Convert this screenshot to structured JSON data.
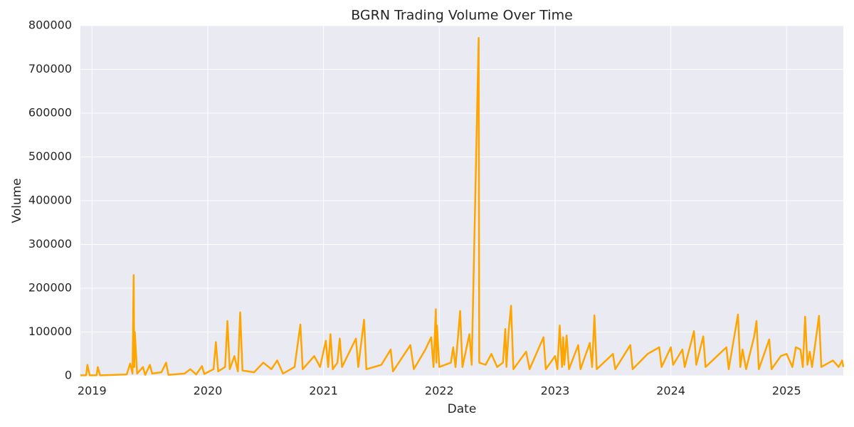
{
  "chart_data": {
    "type": "line",
    "title": "BGRN Trading Volume Over Time",
    "x_label": "Date",
    "y_label": "Volume",
    "x": [
      2018.9,
      2018.95,
      2018.96,
      2018.98,
      2019.04,
      2019.05,
      2019.07,
      2019.2,
      2019.3,
      2019.33,
      2019.35,
      2019.36,
      2019.365,
      2019.37,
      2019.39,
      2019.44,
      2019.46,
      2019.5,
      2019.52,
      2019.6,
      2019.64,
      2019.66,
      2019.8,
      2019.85,
      2019.9,
      2019.95,
      2019.97,
      2020.05,
      2020.07,
      2020.09,
      2020.15,
      2020.17,
      2020.19,
      2020.23,
      2020.26,
      2020.28,
      2020.3,
      2020.4,
      2020.48,
      2020.55,
      2020.6,
      2020.65,
      2020.75,
      2020.8,
      2020.82,
      2020.92,
      2020.97,
      2021.02,
      2021.04,
      2021.06,
      2021.08,
      2021.12,
      2021.14,
      2021.16,
      2021.28,
      2021.3,
      2021.35,
      2021.37,
      2021.5,
      2021.58,
      2021.6,
      2021.75,
      2021.78,
      2021.88,
      2021.93,
      2021.95,
      2021.97,
      2021.975,
      2021.98,
      2022.0,
      2022.1,
      2022.12,
      2022.14,
      2022.18,
      2022.2,
      2022.26,
      2022.28,
      2022.34,
      2022.345,
      2022.4,
      2022.45,
      2022.5,
      2022.55,
      2022.57,
      2022.58,
      2022.6,
      2022.62,
      2022.64,
      2022.75,
      2022.78,
      2022.9,
      2022.92,
      2023.0,
      2023.02,
      2023.04,
      2023.06,
      2023.07,
      2023.08,
      2023.1,
      2023.12,
      2023.2,
      2023.22,
      2023.3,
      2023.32,
      2023.34,
      2023.36,
      2023.5,
      2023.52,
      2023.65,
      2023.67,
      2023.8,
      2023.9,
      2023.92,
      2024.0,
      2024.02,
      2024.1,
      2024.12,
      2024.2,
      2024.22,
      2024.28,
      2024.3,
      2024.4,
      2024.48,
      2024.5,
      2024.58,
      2024.6,
      2024.62,
      2024.65,
      2024.72,
      2024.74,
      2024.76,
      2024.85,
      2024.87,
      2024.95,
      2025.0,
      2025.05,
      2025.08,
      2025.12,
      2025.14,
      2025.16,
      2025.18,
      2025.2,
      2025.22,
      2025.28,
      2025.3,
      2025.4,
      2025.45,
      2025.48,
      2025.49
    ],
    "series": [
      {
        "name": "Volume",
        "color": "#ffa500",
        "values": [
          1000,
          1000,
          25000,
          1000,
          1000,
          20000,
          1000,
          2000,
          3000,
          28000,
          5000,
          230000,
          20000,
          100000,
          5000,
          20000,
          2000,
          25000,
          5000,
          8000,
          30000,
          2000,
          5000,
          15000,
          3000,
          22000,
          4000,
          15000,
          77000,
          10000,
          20000,
          125000,
          15000,
          45000,
          10000,
          145000,
          12000,
          8000,
          30000,
          15000,
          35000,
          5000,
          20000,
          117000,
          15000,
          45000,
          20000,
          80000,
          20000,
          95000,
          15000,
          30000,
          85000,
          20000,
          85000,
          20000,
          128000,
          15000,
          25000,
          60000,
          10000,
          70000,
          15000,
          60000,
          88000,
          20000,
          152000,
          30000,
          115000,
          20000,
          30000,
          65000,
          20000,
          148000,
          20000,
          95000,
          25000,
          772000,
          30000,
          25000,
          50000,
          20000,
          30000,
          107000,
          20000,
          105000,
          160000,
          15000,
          55000,
          15000,
          88000,
          15000,
          45000,
          15000,
          115000,
          20000,
          88000,
          25000,
          92000,
          15000,
          70000,
          15000,
          75000,
          20000,
          138000,
          15000,
          50000,
          15000,
          70000,
          15000,
          50000,
          65000,
          20000,
          65000,
          25000,
          60000,
          20000,
          102000,
          25000,
          90000,
          20000,
          45000,
          65000,
          15000,
          140000,
          20000,
          60000,
          15000,
          90000,
          125000,
          15000,
          83000,
          15000,
          45000,
          50000,
          20000,
          65000,
          60000,
          20000,
          135000,
          25000,
          55000,
          20000,
          137000,
          20000,
          35000,
          20000,
          35000,
          20000
        ]
      }
    ],
    "xlim": [
      2018.9,
      2025.49
    ],
    "xticks": [
      2019,
      2020,
      2021,
      2022,
      2023,
      2024,
      2025
    ],
    "ylim": [
      0,
      800000
    ],
    "yticks": [
      0,
      100000,
      200000,
      300000,
      400000,
      500000,
      600000,
      700000,
      800000
    ],
    "grid": true
  }
}
